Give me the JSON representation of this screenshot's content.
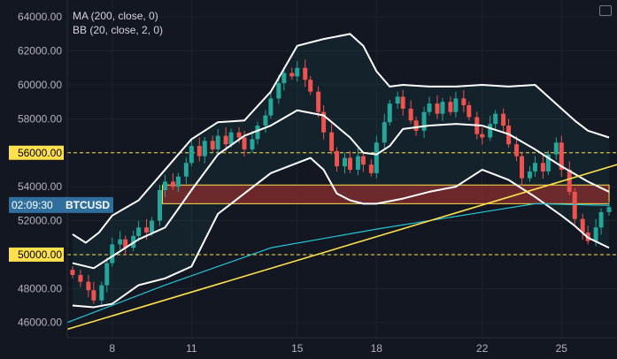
{
  "legend": {
    "ma": "MA (200, close, 0)",
    "bb": "BB (20, close, 2, 0)"
  },
  "price_badge": {
    "time": "02:09:30",
    "symbol": "BTCUSD"
  },
  "colors": {
    "background": "#131722",
    "grid": "#1e222d",
    "bull": "#26a69a",
    "bear": "#ef5350",
    "ma": "#26c6da",
    "bands": "#ffffff",
    "trendline": "#ffe14d",
    "levels": "#ffe14d",
    "zone_fill": "#8b2e2e",
    "zone_border": "#ffe14d",
    "axis_text": "#b2b5be",
    "badge": "#2e6f9e"
  },
  "chart_data": {
    "type": "candlestick",
    "y_ticks": [
      "46000.00",
      "48000.00",
      "50000.00",
      "52000.00",
      "54000.00",
      "56000.00",
      "58000.00",
      "60000.00",
      "62000.00",
      "64000.00"
    ],
    "x_ticks": [
      "8",
      "11",
      "15",
      "18",
      "22",
      "25"
    ],
    "ylim": [
      45100,
      65000
    ],
    "day_range": [
      6.3,
      27.1
    ],
    "horizontal_levels": [
      {
        "value": 56000,
        "label": "56000.00"
      },
      {
        "value": 50000,
        "label": "50000.00"
      }
    ],
    "zone": {
      "from_day": 9.9,
      "to_day": 26.8,
      "low": 53000,
      "high": 54100
    },
    "trendline": {
      "start": [
        6.3,
        45600
      ],
      "end": [
        27.1,
        55300
      ]
    },
    "candles_close": [
      [
        6.5,
        48800
      ],
      [
        6.8,
        48400
      ],
      [
        7.1,
        47900
      ],
      [
        7.3,
        47300
      ],
      [
        7.6,
        48200
      ],
      [
        7.8,
        49500
      ],
      [
        8.0,
        50600
      ],
      [
        8.3,
        50900
      ],
      [
        8.5,
        50400
      ],
      [
        8.8,
        51100
      ],
      [
        9.0,
        51600
      ],
      [
        9.3,
        51300
      ],
      [
        9.5,
        52000
      ],
      [
        9.8,
        53800
      ],
      [
        10.0,
        54300
      ],
      [
        10.3,
        54000
      ],
      [
        10.5,
        54600
      ],
      [
        10.8,
        55400
      ],
      [
        11.0,
        56400
      ],
      [
        11.3,
        55800
      ],
      [
        11.5,
        56700
      ],
      [
        11.8,
        56200
      ],
      [
        12.0,
        57000
      ],
      [
        12.3,
        56500
      ],
      [
        12.5,
        57200
      ],
      [
        12.8,
        56900
      ],
      [
        13.0,
        56200
      ],
      [
        13.3,
        56800
      ],
      [
        13.5,
        57600
      ],
      [
        13.8,
        58200
      ],
      [
        14.0,
        59200
      ],
      [
        14.3,
        60100
      ],
      [
        14.5,
        60700
      ],
      [
        14.8,
        60500
      ],
      [
        15.0,
        61000
      ],
      [
        15.3,
        60300
      ],
      [
        15.5,
        59600
      ],
      [
        15.8,
        58400
      ],
      [
        16.0,
        57200
      ],
      [
        16.3,
        56100
      ],
      [
        16.5,
        55200
      ],
      [
        16.8,
        55700
      ],
      [
        17.0,
        55000
      ],
      [
        17.3,
        55800
      ],
      [
        17.5,
        55300
      ],
      [
        17.8,
        54800
      ],
      [
        18.0,
        56600
      ],
      [
        18.3,
        57800
      ],
      [
        18.5,
        58900
      ],
      [
        18.8,
        59300
      ],
      [
        19.0,
        58600
      ],
      [
        19.3,
        57900
      ],
      [
        19.5,
        57300
      ],
      [
        19.8,
        58400
      ],
      [
        20.0,
        58900
      ],
      [
        20.3,
        58300
      ],
      [
        20.5,
        59000
      ],
      [
        20.8,
        58400
      ],
      [
        21.0,
        59200
      ],
      [
        21.3,
        58800
      ],
      [
        21.5,
        58100
      ],
      [
        21.8,
        57100
      ],
      [
        22.0,
        56900
      ],
      [
        22.3,
        57700
      ],
      [
        22.5,
        58300
      ],
      [
        22.8,
        57600
      ],
      [
        23.0,
        56500
      ],
      [
        23.3,
        55800
      ],
      [
        23.5,
        54500
      ],
      [
        23.8,
        54900
      ],
      [
        24.0,
        55400
      ],
      [
        24.3,
        54900
      ],
      [
        24.5,
        55900
      ],
      [
        24.8,
        56600
      ],
      [
        25.0,
        55000
      ],
      [
        25.3,
        53700
      ],
      [
        25.5,
        52100
      ],
      [
        25.8,
        51300
      ],
      [
        26.0,
        50800
      ],
      [
        26.3,
        51600
      ],
      [
        26.5,
        52500
      ],
      [
        26.8,
        52800
      ]
    ],
    "ma200": [
      [
        6.3,
        46000
      ],
      [
        10,
        48200
      ],
      [
        14,
        50400
      ],
      [
        18,
        51500
      ],
      [
        22,
        52500
      ],
      [
        24,
        53000
      ],
      [
        26.8,
        52900
      ]
    ],
    "bb_upper": [
      [
        6.5,
        51200
      ],
      [
        7,
        50700
      ],
      [
        7.5,
        51300
      ],
      [
        8,
        52300
      ],
      [
        9,
        53200
      ],
      [
        10,
        55000
      ],
      [
        11,
        56800
      ],
      [
        12,
        57800
      ],
      [
        13,
        57900
      ],
      [
        14,
        59600
      ],
      [
        15,
        62300
      ],
      [
        16,
        62700
      ],
      [
        17,
        63000
      ],
      [
        17.5,
        62300
      ],
      [
        18,
        60800
      ],
      [
        18.5,
        59900
      ],
      [
        19,
        60000
      ],
      [
        20,
        59900
      ],
      [
        21,
        59900
      ],
      [
        22,
        60000
      ],
      [
        23,
        59900
      ],
      [
        24,
        60000
      ],
      [
        25,
        58600
      ],
      [
        25.5,
        57900
      ],
      [
        26,
        57300
      ],
      [
        26.8,
        56900
      ]
    ],
    "bb_mid": [
      [
        6.5,
        49500
      ],
      [
        7.3,
        49200
      ],
      [
        8,
        49900
      ],
      [
        9,
        50900
      ],
      [
        10,
        51600
      ],
      [
        11,
        53800
      ],
      [
        12,
        55900
      ],
      [
        13,
        57000
      ],
      [
        14,
        57600
      ],
      [
        15,
        58500
      ],
      [
        16,
        58200
      ],
      [
        17,
        56900
      ],
      [
        17.5,
        56000
      ],
      [
        18,
        55900
      ],
      [
        18.5,
        56400
      ],
      [
        19,
        57400
      ],
      [
        20,
        57600
      ],
      [
        21,
        57700
      ],
      [
        22,
        57600
      ],
      [
        23,
        57100
      ],
      [
        24,
        56200
      ],
      [
        25,
        55200
      ],
      [
        26,
        54300
      ],
      [
        26.8,
        53700
      ]
    ],
    "bb_lower": [
      [
        6.5,
        47000
      ],
      [
        7.3,
        46900
      ],
      [
        8,
        47100
      ],
      [
        9,
        48200
      ],
      [
        10,
        48600
      ],
      [
        11,
        49300
      ],
      [
        12,
        52400
      ],
      [
        13,
        53600
      ],
      [
        14,
        54800
      ],
      [
        15,
        55400
      ],
      [
        15.5,
        55700
      ],
      [
        16,
        55000
      ],
      [
        16.5,
        53600
      ],
      [
        17,
        53200
      ],
      [
        17.5,
        53000
      ],
      [
        18,
        53000
      ],
      [
        19,
        53300
      ],
      [
        20,
        53700
      ],
      [
        21,
        54000
      ],
      [
        22,
        55000
      ],
      [
        23,
        54400
      ],
      [
        24,
        53400
      ],
      [
        25,
        52300
      ],
      [
        25.5,
        51700
      ],
      [
        26,
        51000
      ],
      [
        26.8,
        50400
      ]
    ]
  }
}
